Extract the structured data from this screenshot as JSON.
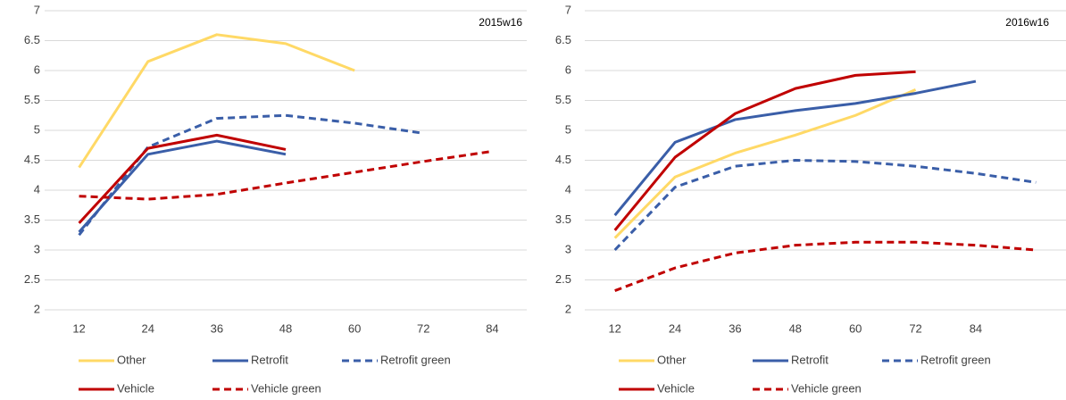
{
  "chart_data": [
    {
      "type": "line",
      "annotation": "2015w16",
      "categories": [
        12,
        24,
        36,
        48,
        60,
        72,
        84
      ],
      "ylim": [
        2,
        7
      ],
      "yticks": [
        2,
        2.5,
        3,
        3.5,
        4,
        4.5,
        5,
        5.5,
        6,
        6.5,
        7
      ],
      "grid": true,
      "series": [
        {
          "name": "Other",
          "color": "#ffd966",
          "dashed": false,
          "values": [
            4.38,
            6.15,
            6.6,
            6.45,
            6.0,
            null,
            null
          ]
        },
        {
          "name": "Retrofit",
          "color": "#3a5ea8",
          "dashed": false,
          "values": [
            3.3,
            4.6,
            4.82,
            4.6,
            null,
            null,
            null
          ]
        },
        {
          "name": "Retrofit green",
          "color": "#3a5ea8",
          "dashed": true,
          "values": [
            3.25,
            4.72,
            5.2,
            5.25,
            5.12,
            4.95,
            null
          ]
        },
        {
          "name": "Vehicle",
          "color": "#c00000",
          "dashed": false,
          "values": [
            3.45,
            4.7,
            4.92,
            4.68,
            null,
            null,
            null
          ]
        },
        {
          "name": "Vehicle green",
          "color": "#c00000",
          "dashed": true,
          "values": [
            3.9,
            3.85,
            3.93,
            4.12,
            4.3,
            4.48,
            4.65
          ]
        }
      ]
    },
    {
      "type": "line",
      "annotation": "2016w16",
      "categories": [
        12,
        24,
        36,
        48,
        60,
        72,
        84,
        null
      ],
      "ylim": [
        2,
        7
      ],
      "yticks": [
        2,
        2.5,
        3,
        3.5,
        4,
        4.5,
        5,
        5.5,
        6,
        6.5,
        7
      ],
      "grid": true,
      "series": [
        {
          "name": "Other",
          "color": "#ffd966",
          "dashed": false,
          "values": [
            3.2,
            4.22,
            4.62,
            4.92,
            5.25,
            5.68,
            null,
            null
          ]
        },
        {
          "name": "Retrofit",
          "color": "#3a5ea8",
          "dashed": false,
          "values": [
            3.58,
            4.8,
            5.18,
            5.33,
            5.45,
            5.62,
            5.82,
            null
          ]
        },
        {
          "name": "Retrofit green",
          "color": "#3a5ea8",
          "dashed": true,
          "values": [
            3.0,
            4.05,
            4.4,
            4.5,
            4.48,
            4.4,
            4.28,
            4.13
          ]
        },
        {
          "name": "Vehicle",
          "color": "#c00000",
          "dashed": false,
          "values": [
            3.33,
            4.55,
            5.28,
            5.7,
            5.92,
            5.98,
            null,
            null
          ]
        },
        {
          "name": "Vehicle green",
          "color": "#c00000",
          "dashed": true,
          "values": [
            2.32,
            2.7,
            2.95,
            3.08,
            3.13,
            3.13,
            3.08,
            3.0
          ]
        }
      ]
    }
  ]
}
